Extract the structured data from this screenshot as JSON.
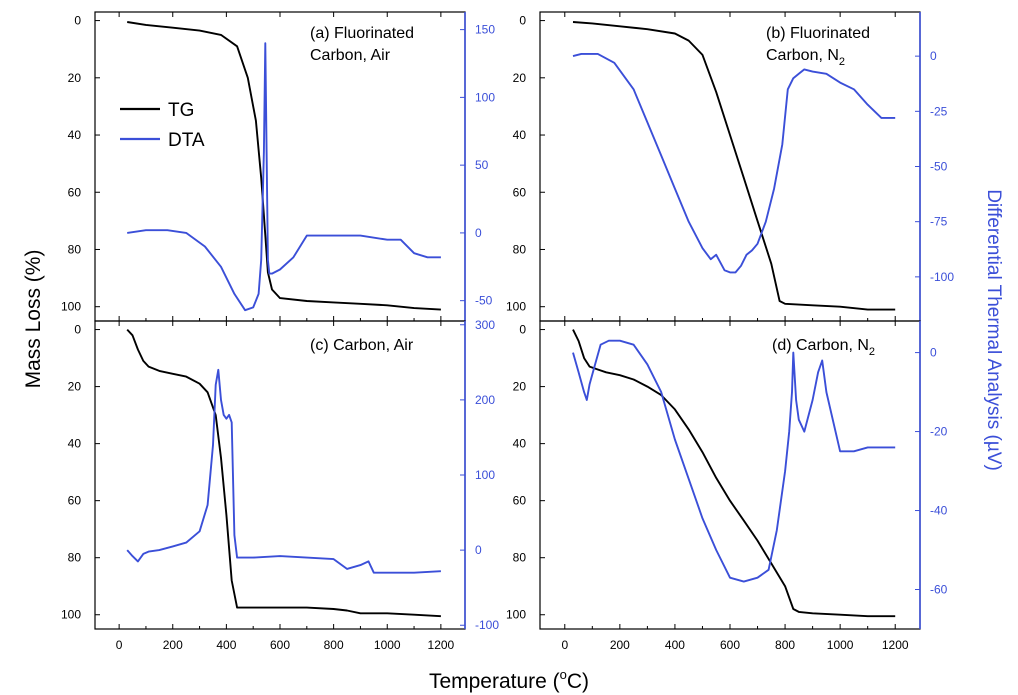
{
  "figure": {
    "ylabel_left": "Mass Loss (%)",
    "ylabel_right": "Differential Thermal Analysis (µV)",
    "xlabel_main": "Temperature (",
    "xlabel_sup": "o",
    "xlabel_end": "C)",
    "legend": [
      {
        "label": "TG",
        "color": "#000000"
      },
      {
        "label": "DTA",
        "color": "#3b4fd8"
      }
    ],
    "colors": {
      "tg": "#000000",
      "dta": "#3b4fd8",
      "right_axis": "#3b4fd8"
    }
  },
  "chart_data": [
    {
      "type": "line",
      "annotation_lines": [
        {
          "text": "(a) Fluorinated"
        },
        {
          "text": "Carbon, Air"
        }
      ],
      "x_ticks": [
        "0",
        "200",
        "400",
        "600",
        "800",
        "1000",
        "1200"
      ],
      "xlim": [
        -90,
        1290
      ],
      "ylim_left": [
        105,
        -3
      ],
      "y_ticks_left": [
        0,
        20,
        40,
        60,
        80,
        100
      ],
      "ylim_right": [
        -65,
        163
      ],
      "y_ticks_right": [
        -50,
        0,
        50,
        100,
        150
      ],
      "series": [
        {
          "name": "TG",
          "axis": "left",
          "x": [
            30,
            100,
            200,
            300,
            380,
            440,
            480,
            510,
            530,
            545,
            555,
            570,
            600,
            700,
            800,
            900,
            1000,
            1100,
            1200
          ],
          "y": [
            0.5,
            1.5,
            2.5,
            3.5,
            5,
            9,
            20,
            35,
            55,
            75,
            88,
            94,
            97,
            98,
            98.5,
            99,
            99.5,
            100.5,
            101
          ]
        },
        {
          "name": "DTA",
          "axis": "right",
          "x": [
            30,
            100,
            180,
            250,
            320,
            380,
            430,
            470,
            500,
            520,
            530,
            540,
            545,
            550,
            555,
            560,
            570,
            600,
            650,
            700,
            800,
            900,
            1000,
            1050,
            1100,
            1150,
            1200
          ],
          "y": [
            0,
            2,
            2,
            0,
            -10,
            -25,
            -45,
            -57,
            -55,
            -45,
            -20,
            60,
            140,
            60,
            -20,
            -30,
            -30,
            -27,
            -18,
            -2,
            -2,
            -2,
            -5,
            -5,
            -15,
            -18,
            -18
          ]
        }
      ]
    },
    {
      "type": "line",
      "annotation_lines": [
        {
          "text": "(b) Fluorinated"
        },
        {
          "text": "Carbon, N",
          "sub": "2"
        }
      ],
      "x_ticks": [
        "0",
        "200",
        "400",
        "600",
        "800",
        "1000",
        "1200"
      ],
      "xlim": [
        -90,
        1290
      ],
      "ylim_left": [
        105,
        -3
      ],
      "y_ticks_left": [
        0,
        20,
        40,
        60,
        80,
        100
      ],
      "ylim_right": [
        -120,
        20
      ],
      "y_ticks_right": [
        -100,
        -75,
        -50,
        -25,
        0
      ],
      "series": [
        {
          "name": "TG",
          "axis": "left",
          "x": [
            30,
            100,
            200,
            300,
            400,
            450,
            500,
            550,
            600,
            650,
            700,
            750,
            780,
            800,
            900,
            1000,
            1100,
            1200
          ],
          "y": [
            0.5,
            1,
            2,
            3,
            4.5,
            7,
            12,
            25,
            40,
            55,
            70,
            85,
            98,
            99,
            99.5,
            100,
            101,
            101
          ]
        },
        {
          "name": "DTA",
          "axis": "right",
          "x": [
            30,
            60,
            120,
            180,
            250,
            300,
            350,
            400,
            450,
            500,
            530,
            550,
            580,
            600,
            620,
            640,
            660,
            680,
            700,
            730,
            760,
            790,
            810,
            830,
            850,
            870,
            900,
            950,
            1000,
            1050,
            1100,
            1150,
            1200
          ],
          "y": [
            0,
            1,
            1,
            -3,
            -15,
            -30,
            -45,
            -60,
            -75,
            -87,
            -92,
            -90,
            -97,
            -98,
            -98,
            -95,
            -90,
            -88,
            -85,
            -75,
            -60,
            -40,
            -15,
            -10,
            -8,
            -6,
            -7,
            -8,
            -12,
            -15,
            -22,
            -28,
            -28
          ]
        }
      ]
    },
    {
      "type": "line",
      "annotation_lines": [
        {
          "text": "(c) Carbon, Air"
        }
      ],
      "x_ticks": [
        "0",
        "200",
        "400",
        "600",
        "800",
        "1000",
        "1200"
      ],
      "xlim": [
        -90,
        1290
      ],
      "ylim_left": [
        105,
        -3
      ],
      "y_ticks_left": [
        0,
        20,
        40,
        60,
        80,
        100
      ],
      "ylim_right": [
        -105,
        305
      ],
      "y_ticks_right": [
        -100,
        0,
        100,
        200,
        300
      ],
      "series": [
        {
          "name": "TG",
          "axis": "left",
          "x": [
            30,
            50,
            70,
            90,
            110,
            150,
            200,
            250,
            300,
            330,
            360,
            380,
            400,
            420,
            440,
            500,
            600,
            700,
            800,
            850,
            900,
            1000,
            1100,
            1200
          ],
          "y": [
            0,
            2,
            7,
            11,
            13,
            14.5,
            15.5,
            16.5,
            19,
            22,
            30,
            45,
            65,
            88,
            97.5,
            97.5,
            97.5,
            97.5,
            98,
            98.5,
            99.5,
            99.5,
            100,
            100.5
          ]
        },
        {
          "name": "DTA",
          "axis": "right",
          "x": [
            30,
            50,
            70,
            90,
            110,
            150,
            200,
            250,
            300,
            330,
            350,
            360,
            370,
            380,
            390,
            400,
            410,
            420,
            430,
            440,
            500,
            600,
            700,
            800,
            850,
            900,
            930,
            950,
            1000,
            1100,
            1200
          ],
          "y": [
            0,
            -8,
            -15,
            -5,
            -2,
            0,
            5,
            10,
            25,
            60,
            140,
            220,
            240,
            200,
            180,
            175,
            180,
            170,
            20,
            -10,
            -10,
            -8,
            -10,
            -12,
            -25,
            -20,
            -15,
            -30,
            -30,
            -30,
            -28
          ]
        }
      ]
    },
    {
      "type": "line",
      "annotation_lines": [
        {
          "text": "(d) Carbon, N",
          "sub": "2"
        }
      ],
      "x_ticks": [
        "0",
        "200",
        "400",
        "600",
        "800",
        "1000",
        "1200"
      ],
      "xlim": [
        -90,
        1290
      ],
      "ylim_left": [
        105,
        -3
      ],
      "y_ticks_left": [
        0,
        20,
        40,
        60,
        80,
        100
      ],
      "ylim_right": [
        -70,
        8
      ],
      "y_ticks_right": [
        -60,
        -40,
        -20,
        0
      ],
      "series": [
        {
          "name": "TG",
          "axis": "left",
          "x": [
            30,
            50,
            70,
            90,
            120,
            150,
            200,
            250,
            300,
            350,
            400,
            450,
            500,
            550,
            600,
            650,
            700,
            750,
            800,
            830,
            850,
            900,
            1000,
            1100,
            1200
          ],
          "y": [
            0,
            4,
            10,
            13,
            14,
            15,
            16,
            17.5,
            20,
            23,
            28,
            35,
            43,
            52,
            60,
            67,
            74,
            82,
            90,
            98,
            99,
            99.5,
            100,
            100.5,
            100.5
          ]
        },
        {
          "name": "DTA",
          "axis": "right",
          "x": [
            30,
            50,
            70,
            80,
            90,
            110,
            130,
            160,
            200,
            250,
            300,
            350,
            400,
            450,
            500,
            550,
            600,
            650,
            700,
            740,
            770,
            800,
            815,
            825,
            830,
            840,
            850,
            870,
            900,
            920,
            935,
            950,
            1000,
            1050,
            1100,
            1150,
            1200
          ],
          "y": [
            0,
            -5,
            -10,
            -12,
            -8,
            -3,
            2,
            3,
            3,
            2,
            -3,
            -10,
            -22,
            -32,
            -42,
            -50,
            -57,
            -58,
            -57,
            -55,
            -45,
            -30,
            -20,
            -10,
            0,
            -12,
            -17,
            -20,
            -12,
            -5,
            -2,
            -10,
            -25,
            -25,
            -24,
            -24,
            -24
          ]
        }
      ]
    }
  ]
}
